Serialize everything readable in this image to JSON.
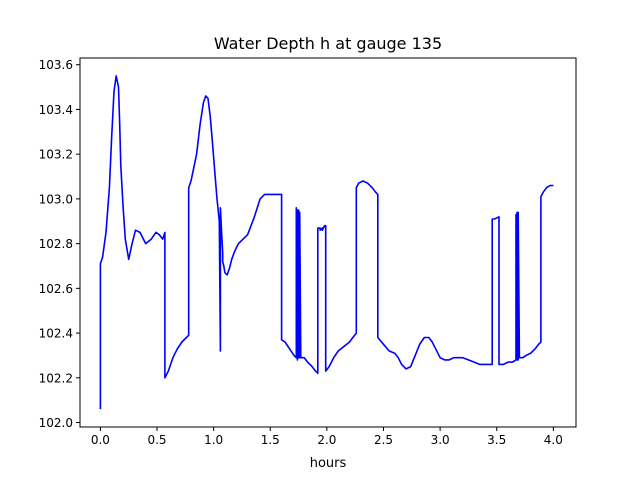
{
  "chart_data": {
    "type": "line",
    "title": "Water Depth h at gauge 135",
    "xlabel": "hours",
    "ylabel": "",
    "xlim": [
      -0.18,
      4.2
    ],
    "ylim": [
      101.98,
      103.63
    ],
    "xticks": [
      0.0,
      0.5,
      1.0,
      1.5,
      2.0,
      2.5,
      3.0,
      3.5,
      4.0
    ],
    "xtick_labels": [
      "0.0",
      "0.5",
      "1.0",
      "1.5",
      "2.0",
      "2.5",
      "3.0",
      "3.5",
      "4.0"
    ],
    "yticks": [
      102.0,
      102.2,
      102.4,
      102.6,
      102.8,
      103.0,
      103.2,
      103.4,
      103.6
    ],
    "ytick_labels": [
      "102.0",
      "102.2",
      "102.4",
      "102.6",
      "102.8",
      "103.0",
      "103.2",
      "103.4",
      "103.6"
    ],
    "grid": false,
    "series": [
      {
        "color": "#0000ff",
        "x": [
          0.0,
          0.0,
          0.02,
          0.05,
          0.08,
          0.1,
          0.12,
          0.14,
          0.16,
          0.17,
          0.18,
          0.2,
          0.22,
          0.25,
          0.28,
          0.31,
          0.35,
          0.4,
          0.45,
          0.49,
          0.52,
          0.55,
          0.57,
          0.57,
          0.6,
          0.64,
          0.68,
          0.72,
          0.76,
          0.78,
          0.78,
          0.8,
          0.85,
          0.88,
          0.91,
          0.93,
          0.95,
          0.97,
          0.99,
          1.01,
          1.03,
          1.05,
          1.06,
          1.06,
          1.07,
          1.08,
          1.08,
          1.09,
          1.1,
          1.12,
          1.14,
          1.16,
          1.19,
          1.22,
          1.26,
          1.3,
          1.36,
          1.41,
          1.45,
          1.49,
          1.52,
          1.55,
          1.58,
          1.6,
          1.6,
          1.63,
          1.67,
          1.71,
          1.73,
          1.73,
          1.74,
          1.74,
          1.75,
          1.75,
          1.76,
          1.76,
          1.77,
          1.8,
          1.83,
          1.87,
          1.9,
          1.92,
          1.92,
          1.94,
          1.94,
          1.96,
          1.96,
          1.98,
          1.99,
          1.99,
          2.02,
          2.06,
          2.1,
          2.15,
          2.2,
          2.23,
          2.26,
          2.26,
          2.28,
          2.32,
          2.36,
          2.4,
          2.43,
          2.45,
          2.45,
          2.5,
          2.55,
          2.6,
          2.63,
          2.66,
          2.7,
          2.74,
          2.78,
          2.82,
          2.86,
          2.9,
          2.93,
          2.96,
          3.0,
          3.04,
          3.08,
          3.12,
          3.16,
          3.2,
          3.25,
          3.3,
          3.35,
          3.4,
          3.43,
          3.46,
          3.46,
          3.48,
          3.52,
          3.52,
          3.56,
          3.6,
          3.64,
          3.67,
          3.67,
          3.68,
          3.68,
          3.69,
          3.69,
          3.7,
          3.7,
          3.73,
          3.76,
          3.8,
          3.84,
          3.87,
          3.89,
          3.89,
          3.91,
          3.94,
          3.97,
          4.0
        ],
        "y": [
          102.06,
          102.71,
          102.74,
          102.85,
          103.05,
          103.28,
          103.48,
          103.55,
          103.5,
          103.35,
          103.15,
          102.97,
          102.82,
          102.73,
          102.8,
          102.86,
          102.85,
          102.8,
          102.82,
          102.85,
          102.84,
          102.82,
          102.85,
          102.2,
          102.23,
          102.29,
          102.33,
          102.36,
          102.38,
          102.39,
          103.05,
          103.08,
          103.2,
          103.33,
          103.43,
          103.46,
          103.45,
          103.37,
          103.25,
          103.12,
          103.0,
          102.9,
          102.32,
          102.96,
          102.85,
          102.76,
          102.72,
          102.7,
          102.67,
          102.66,
          102.69,
          102.73,
          102.77,
          102.8,
          102.82,
          102.84,
          102.92,
          103.0,
          103.02,
          103.02,
          103.02,
          103.02,
          103.02,
          103.02,
          102.37,
          102.36,
          102.33,
          102.3,
          102.29,
          102.96,
          102.28,
          102.95,
          102.29,
          102.95,
          102.29,
          102.94,
          102.29,
          102.29,
          102.27,
          102.25,
          102.23,
          102.22,
          102.87,
          102.87,
          102.86,
          102.87,
          102.86,
          102.88,
          102.88,
          102.23,
          102.25,
          102.29,
          102.32,
          102.34,
          102.36,
          102.38,
          102.4,
          103.05,
          103.07,
          103.08,
          103.07,
          103.05,
          103.03,
          103.02,
          102.38,
          102.35,
          102.32,
          102.31,
          102.29,
          102.26,
          102.24,
          102.25,
          102.3,
          102.35,
          102.38,
          102.38,
          102.36,
          102.33,
          102.29,
          102.28,
          102.28,
          102.29,
          102.29,
          102.29,
          102.28,
          102.27,
          102.26,
          102.26,
          102.26,
          102.26,
          102.91,
          102.91,
          102.92,
          102.26,
          102.26,
          102.27,
          102.27,
          102.28,
          102.93,
          102.28,
          102.94,
          102.28,
          102.94,
          102.29,
          102.29,
          102.29,
          102.3,
          102.31,
          102.33,
          102.35,
          102.36,
          103.01,
          103.03,
          103.05,
          103.06,
          103.06
        ]
      }
    ]
  }
}
